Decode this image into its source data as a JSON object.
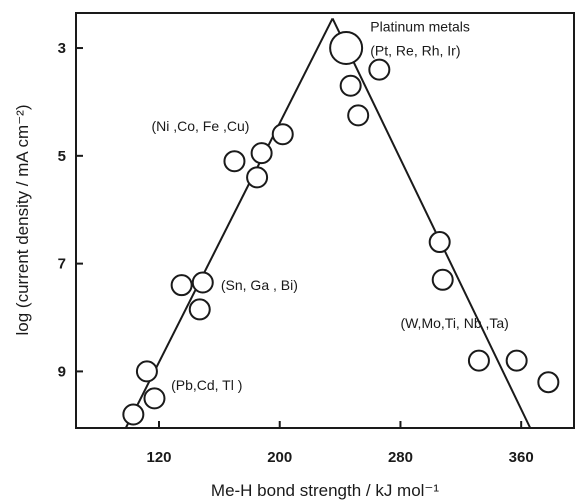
{
  "chart_data": {
    "type": "scatter",
    "xlabel": "Me-H bond strength / kJ mol⁻¹",
    "ylabel": "log (current density / mA cm⁻²)",
    "xlim": [
      65,
      395
    ],
    "ylim": [
      10.05,
      2.35
    ],
    "x_ticks": [
      120,
      200,
      280,
      360
    ],
    "y_ticks": [
      3,
      5,
      7,
      9
    ],
    "grid": false,
    "points": [
      {
        "x": 103,
        "y": 9.8,
        "size": "normal"
      },
      {
        "x": 112,
        "y": 9.0,
        "size": "normal"
      },
      {
        "x": 117,
        "y": 9.5,
        "size": "normal"
      },
      {
        "x": 135,
        "y": 7.4,
        "size": "normal"
      },
      {
        "x": 149,
        "y": 7.35,
        "size": "normal"
      },
      {
        "x": 147,
        "y": 7.85,
        "size": "normal"
      },
      {
        "x": 170,
        "y": 5.1,
        "size": "normal"
      },
      {
        "x": 185,
        "y": 5.4,
        "size": "normal"
      },
      {
        "x": 188,
        "y": 4.95,
        "size": "normal"
      },
      {
        "x": 202,
        "y": 4.6,
        "size": "normal"
      },
      {
        "x": 244,
        "y": 3.0,
        "size": "large"
      },
      {
        "x": 266,
        "y": 3.4,
        "size": "normal"
      },
      {
        "x": 247,
        "y": 3.7,
        "size": "normal"
      },
      {
        "x": 252,
        "y": 4.25,
        "size": "normal"
      },
      {
        "x": 306,
        "y": 6.6,
        "size": "normal"
      },
      {
        "x": 308,
        "y": 7.3,
        "size": "normal"
      },
      {
        "x": 332,
        "y": 8.8,
        "size": "normal"
      },
      {
        "x": 357,
        "y": 8.8,
        "size": "normal"
      },
      {
        "x": 378,
        "y": 9.2,
        "size": "normal"
      }
    ],
    "trend_lines": [
      {
        "x": [
          98,
          235
        ],
        "y": [
          10.05,
          2.45
        ]
      },
      {
        "x": [
          235,
          366
        ],
        "y": [
          2.45,
          10.05
        ]
      }
    ],
    "annotations": [
      {
        "id": "platinum-title",
        "text": "Platinum metals",
        "x": 260,
        "y": 2.6
      },
      {
        "id": "platinum-list",
        "text": "(Pt, Re, Rh, Ir)",
        "x": 260,
        "y": 3.05
      },
      {
        "id": "ni-group",
        "text": "(Ni ,Co, Fe ,Cu)",
        "x": 115,
        "y": 4.45
      },
      {
        "id": "sn-group",
        "text": "(Sn,  Ga , Bi)",
        "x": 161,
        "y": 7.4
      },
      {
        "id": "w-group",
        "text": "(W,Mo,Ti,  Nb ,Ta)",
        "x": 280,
        "y": 8.1
      },
      {
        "id": "pb-group",
        "text": "(Pb,Cd,  Tl )",
        "x": 128,
        "y": 9.25
      }
    ]
  }
}
